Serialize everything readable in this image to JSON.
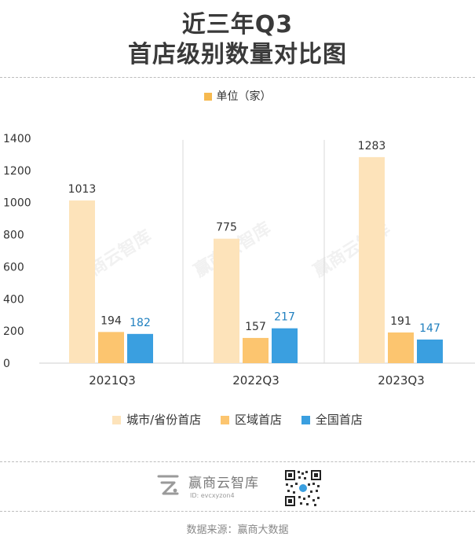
{
  "title_line1": "近三年Q3",
  "title_line2": "首店级别数量对比图",
  "unit_label": "单位（家）",
  "watermark_text": "赢商云智库",
  "brand": {
    "name": "赢商云智库",
    "id_text": "ID: evcxyzon4"
  },
  "source_text": "数据来源：赢商大数据",
  "colors": {
    "city": "#fde3ba",
    "region": "#fcc56f",
    "national": "#3a9fe0",
    "unit_swatch": "#f6b94f",
    "national_label": "#1f7fbf"
  },
  "chart_data": {
    "type": "bar",
    "categories": [
      "2021Q3",
      "2022Q3",
      "2023Q3"
    ],
    "series": [
      {
        "name": "城市/省份首店",
        "values": [
          1013,
          775,
          1283
        ]
      },
      {
        "name": "区域首店",
        "values": [
          194,
          157,
          191
        ]
      },
      {
        "name": "全国首店",
        "values": [
          182,
          217,
          147
        ]
      }
    ],
    "ylim": [
      0,
      1400
    ],
    "yticks": [
      "0",
      "200",
      "400",
      "600",
      "800",
      "1000",
      "1200",
      "1400"
    ],
    "grid": false,
    "legend_position": "bottom"
  }
}
